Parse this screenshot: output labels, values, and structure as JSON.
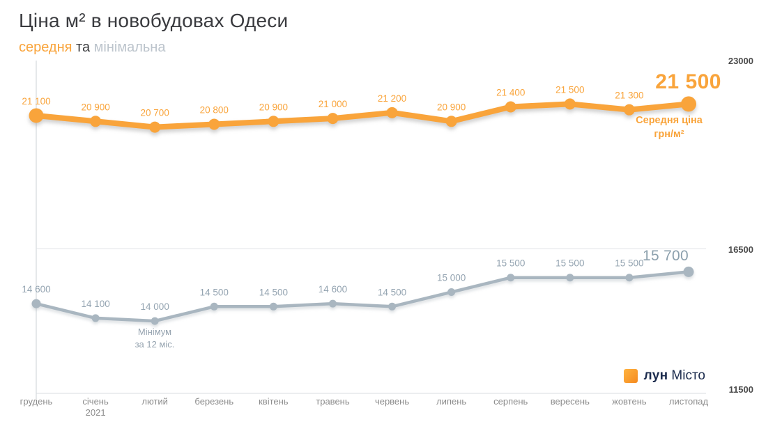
{
  "header": {
    "title": "Ціна м² в новобудовах Одеси",
    "subtitle_avg": "середня",
    "subtitle_conj": " та ",
    "subtitle_min": "мінімальна"
  },
  "colors": {
    "avg_line": "#F9A43B",
    "min_line": "#A9B6C0",
    "min_label": "#94A4B1",
    "brand_navy": "#1B2B4D",
    "axis_tick": "#4B4B4B",
    "month_label": "#8B8B8B"
  },
  "chart_data": {
    "type": "line",
    "title": "Ціна м² в новобудовах Одеси",
    "subtitle": "середня та мінімальна",
    "categories": [
      "грудень",
      "січень",
      "лютий",
      "березень",
      "квітень",
      "травень",
      "червень",
      "липень",
      "серпень",
      "вересень",
      "жовтень",
      "листопад"
    ],
    "x_sublabel": {
      "index": 1,
      "text": "2021"
    },
    "ylim": [
      11500,
      23000
    ],
    "yticks": [
      "23000",
      "16500",
      "11500"
    ],
    "grid_value": 16500,
    "legend_position": "bottom-right",
    "series": [
      {
        "key": "avg",
        "name": "середня",
        "color": "#F9A43B",
        "label_color": "#F9A43B",
        "values": [
          21100,
          20900,
          20700,
          20800,
          20900,
          21000,
          21200,
          20900,
          21400,
          21500,
          21300,
          21500
        ],
        "labels": [
          "21 100",
          "20 900",
          "20 700",
          "20 800",
          "20 900",
          "21 000",
          "21 200",
          "20 900",
          "21 400",
          "21 500",
          "21 300",
          "21 500"
        ],
        "final_label": "21 500"
      },
      {
        "key": "min",
        "name": "мінімальна",
        "color": "#A9B6C0",
        "label_color": "#94A4B1",
        "values": [
          14600,
          14100,
          14000,
          14500,
          14500,
          14600,
          14500,
          15000,
          15500,
          15500,
          15500,
          15700
        ],
        "labels": [
          "14 600",
          "14 100",
          "14 000",
          "14 500",
          "14 500",
          "14 600",
          "14 500",
          "15 000",
          "15 500",
          "15 500",
          "15 500",
          "15 700"
        ],
        "final_label": "15 700"
      }
    ],
    "annotations": {
      "avg_note_line1": "Середня ціна",
      "avg_note_line2": "грн/м²",
      "min_note_line1": "Мінімум",
      "min_note_line2": "за 12 міс."
    }
  },
  "legend": {
    "brand_bold": "лун",
    "brand_regular": "Місто"
  }
}
